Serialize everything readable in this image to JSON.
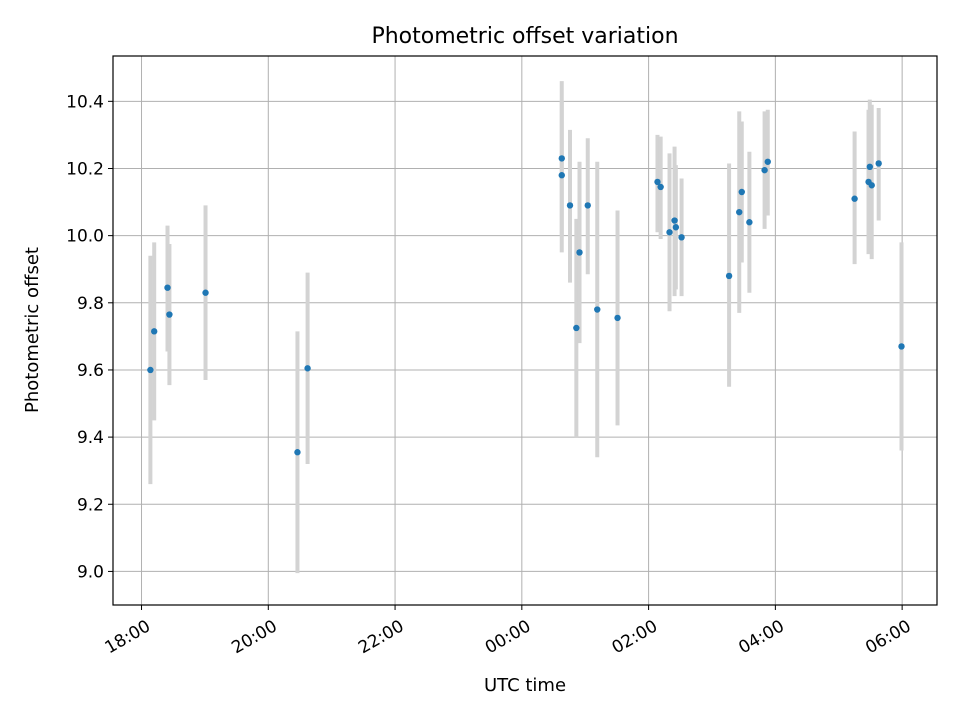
{
  "chart_data": {
    "type": "scatter",
    "title": "Photometric offset variation",
    "xlabel": "UTC time",
    "ylabel": "Photometric offset",
    "xlim_hours": [
      -6.45,
      6.55
    ],
    "ylim": [
      8.9,
      10.535
    ],
    "grid": true,
    "x_ticks": [
      {
        "hours": -6,
        "label": "18:00"
      },
      {
        "hours": -4,
        "label": "20:00"
      },
      {
        "hours": -2,
        "label": "22:00"
      },
      {
        "hours": 0,
        "label": "00:00"
      },
      {
        "hours": 2,
        "label": "02:00"
      },
      {
        "hours": 4,
        "label": "04:00"
      },
      {
        "hours": 6,
        "label": "06:00"
      }
    ],
    "y_ticks": [
      {
        "value": 9.0,
        "label": "9.0"
      },
      {
        "value": 9.2,
        "label": "9.2"
      },
      {
        "value": 9.4,
        "label": "9.4"
      },
      {
        "value": 9.6,
        "label": "9.6"
      },
      {
        "value": 9.8,
        "label": "9.8"
      },
      {
        "value": 10.0,
        "label": "10.0"
      },
      {
        "value": 10.2,
        "label": "10.2"
      },
      {
        "value": 10.4,
        "label": "10.4"
      }
    ],
    "marker_color": "#1f77b4",
    "errorbar_color": "#d3d3d3",
    "series": [
      {
        "name": "photometric offset",
        "points": [
          {
            "x_hours": -5.86,
            "y": 9.6,
            "err_low": 9.26,
            "err_high": 9.94
          },
          {
            "x_hours": -5.8,
            "y": 9.715,
            "err_low": 9.45,
            "err_high": 9.98
          },
          {
            "x_hours": -5.59,
            "y": 9.845,
            "err_low": 9.655,
            "err_high": 10.03
          },
          {
            "x_hours": -5.56,
            "y": 9.765,
            "err_low": 9.555,
            "err_high": 9.975
          },
          {
            "x_hours": -4.99,
            "y": 9.83,
            "err_low": 9.57,
            "err_high": 10.09
          },
          {
            "x_hours": -3.54,
            "y": 9.355,
            "err_low": 8.995,
            "err_high": 9.715
          },
          {
            "x_hours": -3.38,
            "y": 9.605,
            "err_low": 9.32,
            "err_high": 9.89
          },
          {
            "x_hours": 0.63,
            "y": 10.23,
            "err_low": 10.0,
            "err_high": 10.46
          },
          {
            "x_hours": 0.63,
            "y": 10.18,
            "err_low": 9.95,
            "err_high": 10.4
          },
          {
            "x_hours": 0.76,
            "y": 10.09,
            "err_low": 9.86,
            "err_high": 10.315
          },
          {
            "x_hours": 0.86,
            "y": 9.725,
            "err_low": 9.4,
            "err_high": 10.05
          },
          {
            "x_hours": 0.91,
            "y": 9.95,
            "err_low": 9.68,
            "err_high": 10.22
          },
          {
            "x_hours": 1.04,
            "y": 10.09,
            "err_low": 9.885,
            "err_high": 10.29
          },
          {
            "x_hours": 1.19,
            "y": 9.78,
            "err_low": 9.34,
            "err_high": 10.22
          },
          {
            "x_hours": 1.51,
            "y": 9.755,
            "err_low": 9.435,
            "err_high": 10.075
          },
          {
            "x_hours": 2.14,
            "y": 10.16,
            "err_low": 10.01,
            "err_high": 10.3
          },
          {
            "x_hours": 2.19,
            "y": 10.145,
            "err_low": 9.99,
            "err_high": 10.295
          },
          {
            "x_hours": 2.33,
            "y": 10.01,
            "err_low": 9.775,
            "err_high": 10.245
          },
          {
            "x_hours": 2.41,
            "y": 10.045,
            "err_low": 9.82,
            "err_high": 10.265
          },
          {
            "x_hours": 2.43,
            "y": 10.025,
            "err_low": 9.84,
            "err_high": 10.21
          },
          {
            "x_hours": 2.52,
            "y": 9.995,
            "err_low": 9.82,
            "err_high": 10.17
          },
          {
            "x_hours": 3.27,
            "y": 9.88,
            "err_low": 9.55,
            "err_high": 10.215
          },
          {
            "x_hours": 3.43,
            "y": 10.07,
            "err_low": 9.77,
            "err_high": 10.37
          },
          {
            "x_hours": 3.47,
            "y": 10.13,
            "err_low": 9.92,
            "err_high": 10.34
          },
          {
            "x_hours": 3.59,
            "y": 10.04,
            "err_low": 9.83,
            "err_high": 10.25
          },
          {
            "x_hours": 3.83,
            "y": 10.195,
            "err_low": 10.02,
            "err_high": 10.37
          },
          {
            "x_hours": 3.88,
            "y": 10.22,
            "err_low": 10.06,
            "err_high": 10.375
          },
          {
            "x_hours": 5.25,
            "y": 10.11,
            "err_low": 9.915,
            "err_high": 10.31
          },
          {
            "x_hours": 5.47,
            "y": 10.16,
            "err_low": 9.945,
            "err_high": 10.375
          },
          {
            "x_hours": 5.49,
            "y": 10.205,
            "err_low": 10.005,
            "err_high": 10.405
          },
          {
            "x_hours": 5.52,
            "y": 10.15,
            "err_low": 9.93,
            "err_high": 10.39
          },
          {
            "x_hours": 5.63,
            "y": 10.215,
            "err_low": 10.045,
            "err_high": 10.38
          },
          {
            "x_hours": 5.99,
            "y": 9.67,
            "err_low": 9.36,
            "err_high": 9.98
          }
        ]
      }
    ]
  }
}
